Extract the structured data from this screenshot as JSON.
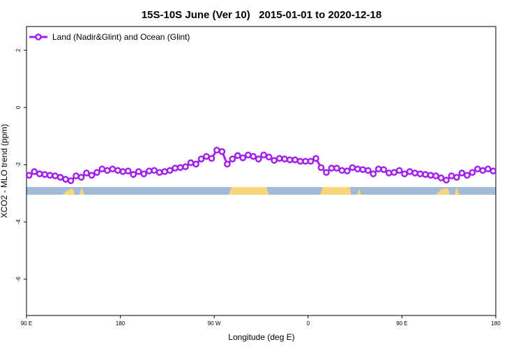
{
  "chart_data": {
    "type": "line",
    "title": "15S-10S June (Ver 10)   2015-01-01 to 2020-12-18",
    "x_label": "Longitude (deg E)",
    "y_label": "XCO2 - MLO trend (ppm)",
    "xlim": [
      90,
      540
    ],
    "ylim": [
      -7.27,
      2.83
    ],
    "xticks": [
      {
        "value": 90,
        "label": "90 E"
      },
      {
        "value": 180,
        "label": "180"
      },
      {
        "value": 270,
        "label": "90 W"
      },
      {
        "value": 360,
        "label": "0"
      },
      {
        "value": 450,
        "label": "90 E"
      },
      {
        "value": 540,
        "label": "180"
      }
    ],
    "yticks": [
      2,
      0,
      -2,
      -4,
      -6
    ],
    "grid": false,
    "legend": "top-left",
    "x": [
      92.5,
      97.5,
      102.5,
      107.5,
      112.5,
      117.5,
      122.5,
      127.5,
      132.5,
      137.5,
      142.5,
      147.5,
      152.5,
      157.5,
      162.5,
      167.5,
      172.5,
      177.5,
      182.5,
      187.5,
      192.5,
      197.5,
      202.5,
      207.5,
      212.5,
      217.5,
      222.5,
      227.5,
      232.5,
      237.5,
      242.5,
      247.5,
      252.5,
      257.5,
      262.5,
      267.5,
      272.5,
      277.5,
      282.5,
      287.5,
      292.5,
      297.5,
      302.5,
      307.5,
      312.5,
      317.5,
      322.5,
      327.5,
      332.5,
      337.5,
      342.5,
      347.5,
      352.5,
      357.5,
      362.5,
      367.5,
      372.5,
      377.5,
      382.5,
      387.5,
      392.5,
      397.5,
      402.5,
      407.5,
      412.5,
      417.5,
      422.5,
      427.5,
      432.5,
      437.5,
      442.5,
      447.5,
      452.5,
      457.5,
      462.5,
      467.5,
      472.5,
      477.5,
      482.5,
      487.5,
      492.5,
      497.5,
      502.5,
      507.5,
      512.5,
      517.5,
      522.5,
      527.5,
      532.5,
      537.5
    ],
    "series": [
      {
        "name": "Land (Nadir&Glint) and Ocean (Glint)",
        "color": "#a020f0",
        "values": [
          -2.37,
          -2.24,
          -2.32,
          -2.34,
          -2.37,
          -2.39,
          -2.44,
          -2.51,
          -2.56,
          -2.39,
          -2.44,
          -2.29,
          -2.37,
          -2.27,
          -2.15,
          -2.2,
          -2.15,
          -2.2,
          -2.24,
          -2.22,
          -2.34,
          -2.24,
          -2.32,
          -2.22,
          -2.2,
          -2.27,
          -2.24,
          -2.2,
          -2.12,
          -2.1,
          -2.07,
          -1.93,
          -1.98,
          -1.8,
          -1.71,
          -1.78,
          -1.49,
          -1.54,
          -1.98,
          -1.8,
          -1.68,
          -1.76,
          -1.66,
          -1.71,
          -1.8,
          -1.66,
          -1.73,
          -1.85,
          -1.78,
          -1.8,
          -1.83,
          -1.83,
          -1.88,
          -1.88,
          -1.88,
          -1.78,
          -2.1,
          -2.27,
          -2.12,
          -2.12,
          -2.2,
          -2.22,
          -2.1,
          -2.15,
          -2.17,
          -2.2,
          -2.32,
          -2.15,
          -2.17,
          -2.29,
          -2.27,
          -2.2,
          -2.32,
          -2.24,
          -2.29,
          -2.32,
          -2.34,
          -2.37,
          -2.39,
          -2.46,
          -2.54,
          -2.39,
          -2.44,
          -2.29,
          -2.37,
          -2.27,
          -2.15,
          -2.2,
          -2.15,
          -2.22
        ]
      }
    ]
  }
}
